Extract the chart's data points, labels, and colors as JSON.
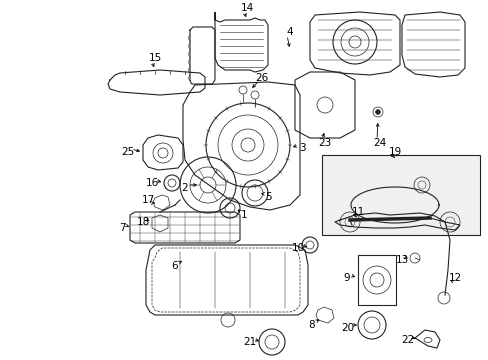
{
  "background_color": "#ffffff",
  "line_color": "#222222",
  "label_color": "#000000",
  "fig_width": 4.89,
  "fig_height": 3.6,
  "dpi": 100
}
